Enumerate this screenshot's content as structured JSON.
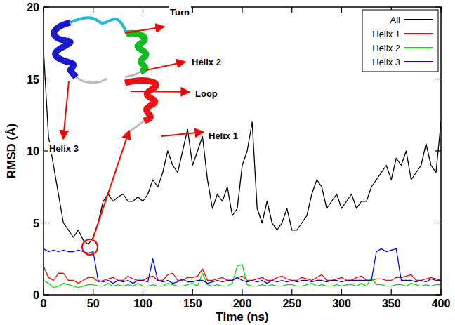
{
  "chart_data": {
    "type": "line",
    "x_label": "Time (ns)",
    "y_label": "RMSD (Å)",
    "xlim": [
      0,
      400
    ],
    "xticks": [
      0,
      50,
      100,
      150,
      200,
      250,
      300,
      350,
      400
    ],
    "ylim": [
      0,
      20
    ],
    "yticks": [
      0,
      5,
      10,
      15,
      20
    ],
    "legend": "upper right",
    "grid": false,
    "annotations": [
      "Turn",
      "Helix 2",
      "Loop",
      "Helix 1",
      "Helix 3"
    ],
    "x": [
      0,
      5,
      10,
      15,
      20,
      25,
      30,
      35,
      40,
      45,
      50,
      55,
      60,
      65,
      70,
      75,
      80,
      85,
      90,
      95,
      100,
      105,
      110,
      115,
      120,
      125,
      130,
      135,
      140,
      145,
      150,
      155,
      160,
      165,
      170,
      175,
      180,
      185,
      190,
      195,
      200,
      205,
      210,
      215,
      220,
      225,
      230,
      235,
      240,
      245,
      250,
      255,
      260,
      265,
      270,
      275,
      280,
      285,
      290,
      295,
      300,
      305,
      310,
      315,
      320,
      325,
      330,
      335,
      340,
      345,
      350,
      355,
      360,
      365,
      370,
      375,
      380,
      385,
      390,
      395,
      400
    ],
    "series": [
      {
        "name": "All",
        "color": "#000000",
        "values": [
          17,
          11,
          9,
          7,
          5,
          4.5,
          4,
          4.5,
          3.8,
          3.5,
          4,
          5,
          6.5,
          7,
          6.5,
          6.8,
          7,
          6.5,
          6.5,
          6.8,
          6.5,
          7,
          8,
          7.5,
          8.5,
          10,
          9,
          8.5,
          10,
          11.5,
          9,
          10,
          11,
          8,
          6,
          7,
          6.5,
          7.5,
          5.5,
          6,
          9,
          10,
          12,
          6,
          5,
          6.5,
          5,
          4.5,
          5,
          6,
          4.5,
          4.5,
          5,
          5.5,
          7,
          8,
          7.5,
          6,
          6.5,
          7,
          6,
          6.5,
          7,
          6,
          6.5,
          6.5,
          7.5,
          8,
          8.5,
          9,
          8,
          9.5,
          9,
          10,
          8,
          8.5,
          9,
          10.5,
          9,
          8.5,
          12
        ]
      },
      {
        "name": "Helix 1",
        "color": "#ff0000",
        "values": [
          2,
          1.2,
          1,
          1.5,
          1.5,
          1,
          1,
          0.8,
          1,
          1.2,
          1.2,
          0.9,
          1,
          1.1,
          1.2,
          1,
          1,
          1.3,
          1.1,
          1,
          1,
          1.2,
          1.3,
          1,
          1,
          1.4,
          1.5,
          1,
          1,
          1.2,
          1.2,
          1.3,
          1.8,
          1,
          1,
          1.1,
          1.2,
          1,
          1,
          1.2,
          1.3,
          1,
          1,
          1.1,
          1.2,
          1,
          1,
          1.2,
          1.3,
          1.1,
          1,
          1,
          1.2,
          1.1,
          1,
          1.2,
          1.4,
          1,
          1,
          1.1,
          1.2,
          1,
          1,
          1.2,
          1.3,
          1,
          1,
          1.1,
          1.1,
          1,
          1,
          1.2,
          1.2,
          1.3,
          1.4,
          1,
          1,
          1.1,
          1.2,
          1.1,
          1
        ]
      },
      {
        "name": "Helix 2",
        "color": "#00dd00",
        "values": [
          1,
          0.8,
          0.5,
          0.6,
          0.8,
          0.7,
          0.6,
          0.5,
          0.6,
          0.7,
          0.7,
          0.6,
          0.6,
          0.8,
          0.6,
          0.7,
          0.6,
          0.7,
          0.6,
          0.8,
          0.6,
          0.6,
          0.7,
          0.6,
          0.6,
          0.8,
          0.7,
          0.6,
          0.6,
          0.7,
          0.8,
          0.6,
          1.5,
          0.7,
          0.6,
          0.7,
          0.6,
          0.6,
          0.8,
          2,
          2.1,
          0.7,
          0.6,
          0.6,
          0.7,
          0.6,
          0.7,
          0.6,
          0.6,
          0.7,
          0.7,
          0.6,
          0.6,
          0.7,
          0.8,
          0.6,
          0.7,
          0.6,
          0.6,
          0.7,
          0.6,
          0.7,
          0.7,
          0.6,
          0.8,
          0.6,
          1.2,
          0.7,
          0.7,
          0.6,
          0.6,
          0.7,
          0.7,
          0.6,
          0.8,
          0.7,
          0.6,
          0.7,
          0.6,
          0.7,
          0.7
        ]
      },
      {
        "name": "Helix 3",
        "color": "#0000ff",
        "values": [
          3.2,
          3,
          3.1,
          3,
          3.1,
          3,
          3,
          3.1,
          3,
          2.9,
          3,
          1,
          0.9,
          1,
          0.8,
          1,
          0.9,
          1,
          0.8,
          1,
          1,
          0.9,
          2.5,
          1,
          0.9,
          1,
          0.8,
          0.9,
          1.1,
          0.9,
          0.9,
          1,
          1,
          0.8,
          0.9,
          1,
          0.9,
          1,
          1,
          1.2,
          1,
          0.9,
          1,
          0.9,
          1,
          0.8,
          1,
          0.9,
          1,
          0.9,
          1,
          0.9,
          1,
          1,
          0.9,
          1,
          1,
          0.9,
          1,
          1,
          0.9,
          1,
          1,
          1,
          1,
          1,
          1,
          3,
          3.2,
          3,
          3.1,
          3.2,
          1,
          1,
          1,
          0.9,
          1,
          0.9,
          1.1,
          1,
          1
        ]
      }
    ]
  }
}
